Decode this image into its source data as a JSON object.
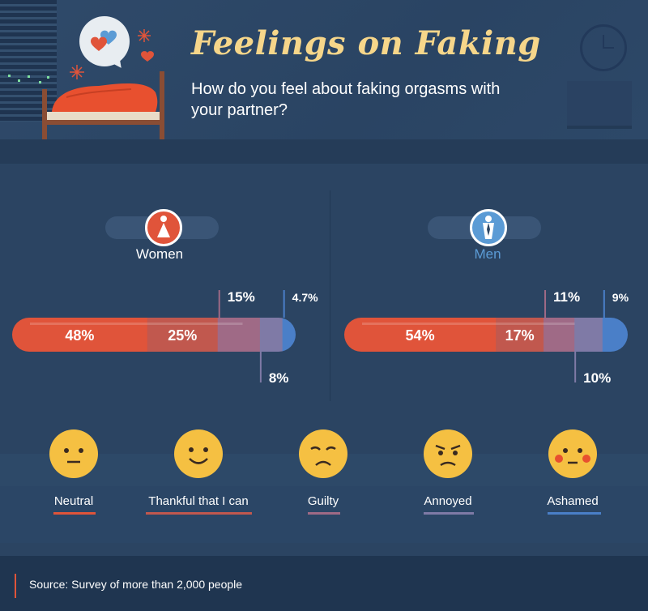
{
  "header": {
    "title": "Feelings on Faking",
    "subtitle": "How do you feel about faking orgasms with your partner?"
  },
  "groups": [
    {
      "label": "Women",
      "color": "#e0543a"
    },
    {
      "label": "Men",
      "color": "#5b9bd5"
    }
  ],
  "colors": {
    "Neutral": "#e0543a",
    "Thankful that I can": "#c1584e",
    "Guilty": "#9f6a86",
    "Annoyed": "#7f7aa6",
    "Ashamed": "#4a7fc8"
  },
  "chart_data": [
    {
      "type": "bar",
      "orientation": "horizontal-stacked",
      "group": "Women",
      "categories": [
        "Neutral",
        "Thankful that I can",
        "Guilty",
        "Annoyed",
        "Ashamed"
      ],
      "values": [
        48,
        25,
        15,
        8,
        4.7
      ],
      "labels": [
        "48%",
        "25%",
        "15%",
        "8%",
        "4.7%"
      ]
    },
    {
      "type": "bar",
      "orientation": "horizontal-stacked",
      "group": "Men",
      "categories": [
        "Neutral",
        "Thankful that I can",
        "Guilty",
        "Annoyed",
        "Ashamed"
      ],
      "values": [
        54,
        17,
        11,
        10,
        9
      ],
      "labels": [
        "54%",
        "17%",
        "11%",
        "10%",
        "9%"
      ]
    }
  ],
  "legend": [
    {
      "label": "Neutral",
      "icon": "neutral-face-icon"
    },
    {
      "label": "Thankful that I can",
      "icon": "smiling-face-icon"
    },
    {
      "label": "Guilty",
      "icon": "sad-face-icon"
    },
    {
      "label": "Annoyed",
      "icon": "annoyed-face-icon"
    },
    {
      "label": "Ashamed",
      "icon": "blushing-face-icon"
    }
  ],
  "footer": {
    "source": "Source: Survey of more than 2,000 people"
  }
}
